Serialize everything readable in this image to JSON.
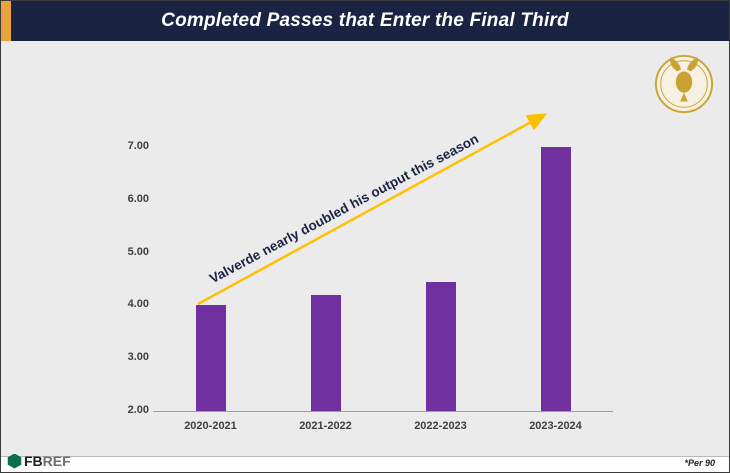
{
  "title": "Completed Passes that Enter the Final Third",
  "annotation": "Valverde nearly doubled his output this season",
  "footnote": "*Per 90",
  "brand": {
    "fb": "FB",
    "ref": "REF"
  },
  "colors": {
    "bar": "#7030A0",
    "arrow": "#FFC000",
    "title_bg": "#1B2343",
    "accent_gold": "#E8A33B",
    "annotation_text": "#1B2343",
    "badge_gold": "#C9A435"
  },
  "chart_data": {
    "type": "bar",
    "categories": [
      "2020-2021",
      "2021-2022",
      "2022-2023",
      "2023-2024"
    ],
    "values": [
      4.0,
      4.2,
      4.45,
      7.0
    ],
    "title": "Completed Passes that Enter the Final Third",
    "xlabel": "",
    "ylabel": "",
    "ylim": [
      2.0,
      7.0
    ],
    "yticks": [
      2.0,
      3.0,
      4.0,
      5.0,
      6.0,
      7.0
    ],
    "grid": false,
    "legend": false,
    "annotation": "Valverde nearly doubled his output this season"
  }
}
